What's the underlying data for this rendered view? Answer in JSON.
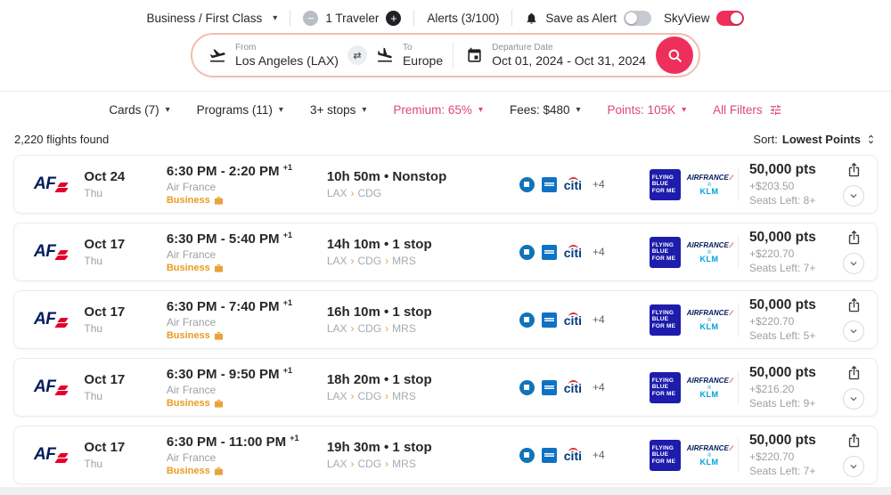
{
  "topbar": {
    "cabin": "Business / First Class",
    "travelers": "1 Traveler",
    "alerts": "Alerts (3/100)",
    "save_alert": "Save as Alert",
    "skyview": "SkyView"
  },
  "search": {
    "from_label": "From",
    "from_value": "Los Angeles (LAX)",
    "to_label": "To",
    "to_value": "Europe",
    "date_label": "Departure Date",
    "date_value": "Oct 01, 2024 - Oct 31, 2024"
  },
  "filters": [
    {
      "label": "Cards (7)",
      "active": false,
      "caret": true
    },
    {
      "label": "Programs (11)",
      "active": false,
      "caret": true
    },
    {
      "label": "3+ stops",
      "active": false,
      "caret": true
    },
    {
      "label": "Premium: 65%",
      "active": true,
      "caret": true
    },
    {
      "label": "Fees: $480",
      "active": false,
      "caret": true
    },
    {
      "label": "Points: 105K",
      "active": true,
      "caret": true
    },
    {
      "label": "All Filters",
      "active": true,
      "caret": false,
      "icon": true
    }
  ],
  "results": {
    "count": "2,220 flights found",
    "sort_label": "Sort:",
    "sort_value": "Lowest Points"
  },
  "program": {
    "flying_blue_line1": "FLYING",
    "flying_blue_line2": "BLUE",
    "flying_blue_line3": "FOR ME",
    "airfrance": "AIRFRANCE",
    "klm": "KLM"
  },
  "icons": {
    "caret": "▾",
    "route_chevron": "›",
    "swap": "⇄",
    "klm_crown": "♔"
  },
  "colors": {
    "accent": "#ee2f5c",
    "filter_active": "#dc477d",
    "business_amber": "#e89c20",
    "af_navy": "#051c5b",
    "af_red": "#e4002b",
    "flying_blue": "#1d1cab",
    "klm_blue": "#00a1de",
    "muted_text": "#9ba1a6"
  },
  "flights": [
    {
      "airline_code": "AF",
      "date": "Oct 24",
      "day": "Thu",
      "times": "6:30 PM - 2:20 PM",
      "plus": "+1",
      "airline": "Air France",
      "cabin": "Business",
      "duration": "10h 50m • Nonstop",
      "route": [
        "LAX",
        "CDG"
      ],
      "more": "+4",
      "points": "50,000 pts",
      "fees": "+$203.50",
      "seats": "Seats Left: 8+"
    },
    {
      "airline_code": "AF",
      "date": "Oct 17",
      "day": "Thu",
      "times": "6:30 PM - 5:40 PM",
      "plus": "+1",
      "airline": "Air France",
      "cabin": "Business",
      "duration": "14h 10m • 1 stop",
      "route": [
        "LAX",
        "CDG",
        "MRS"
      ],
      "more": "+4",
      "points": "50,000 pts",
      "fees": "+$220.70",
      "seats": "Seats Left: 7+"
    },
    {
      "airline_code": "AF",
      "date": "Oct 17",
      "day": "Thu",
      "times": "6:30 PM - 7:40 PM",
      "plus": "+1",
      "airline": "Air France",
      "cabin": "Business",
      "duration": "16h 10m • 1 stop",
      "route": [
        "LAX",
        "CDG",
        "MRS"
      ],
      "more": "+4",
      "points": "50,000 pts",
      "fees": "+$220.70",
      "seats": "Seats Left: 5+"
    },
    {
      "airline_code": "AF",
      "date": "Oct 17",
      "day": "Thu",
      "times": "6:30 PM - 9:50 PM",
      "plus": "+1",
      "airline": "Air France",
      "cabin": "Business",
      "duration": "18h 20m • 1 stop",
      "route": [
        "LAX",
        "CDG",
        "MRS"
      ],
      "more": "+4",
      "points": "50,000 pts",
      "fees": "+$216.20",
      "seats": "Seats Left: 9+"
    },
    {
      "airline_code": "AF",
      "date": "Oct 17",
      "day": "Thu",
      "times": "6:30 PM - 11:00 PM",
      "plus": "+1",
      "airline": "Air France",
      "cabin": "Business",
      "duration": "19h 30m • 1 stop",
      "route": [
        "LAX",
        "CDG",
        "MRS"
      ],
      "more": "+4",
      "points": "50,000 pts",
      "fees": "+$220.70",
      "seats": "Seats Left: 7+"
    }
  ]
}
